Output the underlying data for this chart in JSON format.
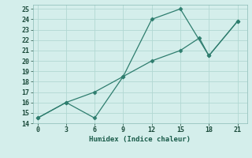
{
  "xlabel": "Humidex (Indice chaleur)",
  "line1_x": [
    0,
    3,
    6,
    9,
    12,
    15,
    18,
    21
  ],
  "line1_y": [
    14.5,
    16.0,
    14.5,
    18.5,
    24.0,
    25.0,
    20.5,
    23.8
  ],
  "line2_x": [
    0,
    3,
    6,
    9,
    12,
    15,
    17,
    18,
    21
  ],
  "line2_y": [
    14.5,
    16.0,
    17.0,
    18.5,
    20.0,
    21.0,
    22.2,
    20.5,
    23.8
  ],
  "color": "#2e7d6e",
  "bg_color": "#d4eeeb",
  "grid_color": "#b2d8d3",
  "xlim": [
    -0.5,
    22
  ],
  "ylim": [
    14,
    25.4
  ],
  "xticks": [
    0,
    3,
    6,
    9,
    12,
    15,
    18,
    21
  ],
  "yticks": [
    14,
    15,
    16,
    17,
    18,
    19,
    20,
    21,
    22,
    23,
    24,
    25
  ],
  "markersize": 2.5,
  "linewidth": 0.9
}
